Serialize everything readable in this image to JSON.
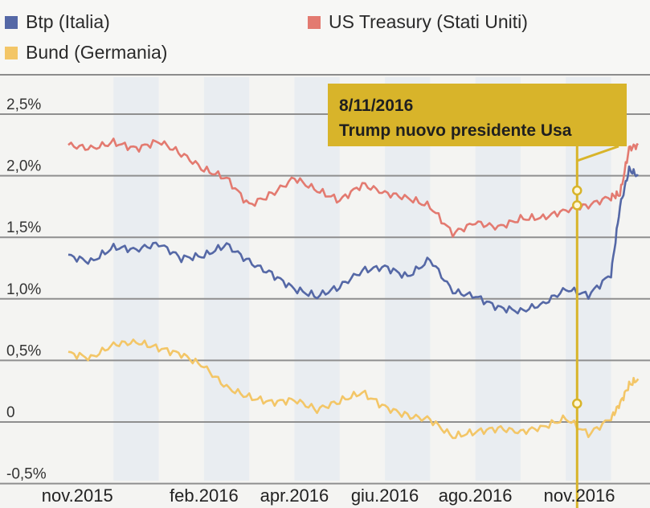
{
  "legend": {
    "items": [
      {
        "label": "Btp (Italia)",
        "color": "#5568a6"
      },
      {
        "label": "US Treasury (Stati Uniti)",
        "color": "#e37a70"
      },
      {
        "label": "Bund (Germania)",
        "color": "#f3c667"
      }
    ]
  },
  "annotation": {
    "date": "8/11/2016",
    "text": "Trump nuovo presidente Usa",
    "color": "#d8b42a"
  },
  "chart_data": {
    "type": "line",
    "x_ticks": [
      "nov.2015",
      "feb.2016",
      "apr.2016",
      "giu.2016",
      "ago.2016",
      "nov.2016"
    ],
    "y_ticks": [
      "2,5%",
      "2,0%",
      "1,5%",
      "1,0%",
      "0,5%",
      "0",
      "-0,5%"
    ],
    "y_tick_values": [
      2.5,
      2.0,
      1.5,
      1.0,
      0.5,
      0,
      -0.5
    ],
    "ylim": [
      -0.55,
      2.65
    ],
    "x_domain_months": [
      0,
      12.4
    ],
    "x_tick_months": [
      0.2,
      3.0,
      5.0,
      7.0,
      9.0,
      11.3
    ],
    "event_month": 11.25,
    "grid": true,
    "legend_position": "top",
    "series": [
      {
        "name": "US Treasury (Stati Uniti)",
        "color": "#e37a70",
        "points": [
          [
            0,
            2.25
          ],
          [
            0.5,
            2.22
          ],
          [
            1.0,
            2.27
          ],
          [
            1.5,
            2.22
          ],
          [
            2.0,
            2.28
          ],
          [
            2.5,
            2.18
          ],
          [
            3.0,
            2.05
          ],
          [
            3.5,
            1.98
          ],
          [
            4.0,
            1.76
          ],
          [
            4.5,
            1.85
          ],
          [
            5.0,
            1.98
          ],
          [
            5.5,
            1.88
          ],
          [
            6.0,
            1.8
          ],
          [
            6.5,
            1.93
          ],
          [
            7.0,
            1.86
          ],
          [
            7.5,
            1.82
          ],
          [
            8.0,
            1.75
          ],
          [
            8.5,
            1.53
          ],
          [
            9.0,
            1.62
          ],
          [
            9.5,
            1.58
          ],
          [
            10.0,
            1.65
          ],
          [
            10.5,
            1.66
          ],
          [
            11.0,
            1.72
          ],
          [
            11.5,
            1.76
          ],
          [
            12.0,
            1.83
          ],
          [
            12.2,
            1.85
          ],
          [
            12.4,
            2.22
          ],
          [
            12.6,
            2.25
          ]
        ]
      },
      {
        "name": "Btp (Italia)",
        "color": "#5568a6",
        "points": [
          [
            0,
            1.35
          ],
          [
            0.5,
            1.3
          ],
          [
            1.0,
            1.42
          ],
          [
            1.5,
            1.4
          ],
          [
            2.0,
            1.45
          ],
          [
            2.5,
            1.33
          ],
          [
            3.0,
            1.35
          ],
          [
            3.5,
            1.44
          ],
          [
            4.0,
            1.3
          ],
          [
            4.5,
            1.2
          ],
          [
            5.0,
            1.08
          ],
          [
            5.5,
            1.02
          ],
          [
            6.0,
            1.1
          ],
          [
            6.5,
            1.23
          ],
          [
            7.0,
            1.26
          ],
          [
            7.5,
            1.18
          ],
          [
            8.0,
            1.32
          ],
          [
            8.5,
            1.06
          ],
          [
            9.0,
            1.02
          ],
          [
            9.5,
            0.93
          ],
          [
            10.0,
            0.9
          ],
          [
            10.5,
            0.96
          ],
          [
            11.0,
            1.08
          ],
          [
            11.5,
            1.03
          ],
          [
            12.0,
            1.2
          ],
          [
            12.2,
            1.75
          ],
          [
            12.4,
            2.05
          ],
          [
            12.6,
            2.0
          ]
        ]
      },
      {
        "name": "Bund (Germania)",
        "color": "#f3c667",
        "points": [
          [
            0,
            0.56
          ],
          [
            0.5,
            0.52
          ],
          [
            1.0,
            0.63
          ],
          [
            1.5,
            0.65
          ],
          [
            2.0,
            0.6
          ],
          [
            2.5,
            0.55
          ],
          [
            3.0,
            0.45
          ],
          [
            3.5,
            0.28
          ],
          [
            4.0,
            0.2
          ],
          [
            4.5,
            0.16
          ],
          [
            5.0,
            0.18
          ],
          [
            5.5,
            0.1
          ],
          [
            6.0,
            0.17
          ],
          [
            6.5,
            0.24
          ],
          [
            7.0,
            0.12
          ],
          [
            7.5,
            0.05
          ],
          [
            8.0,
            0.02
          ],
          [
            8.5,
            -0.12
          ],
          [
            9.0,
            -0.08
          ],
          [
            9.5,
            -0.05
          ],
          [
            10.0,
            -0.08
          ],
          [
            10.5,
            -0.04
          ],
          [
            11.0,
            0.03
          ],
          [
            11.5,
            -0.1
          ],
          [
            12.0,
            0.03
          ],
          [
            12.2,
            0.15
          ],
          [
            12.4,
            0.3
          ],
          [
            12.6,
            0.35
          ]
        ]
      }
    ]
  }
}
